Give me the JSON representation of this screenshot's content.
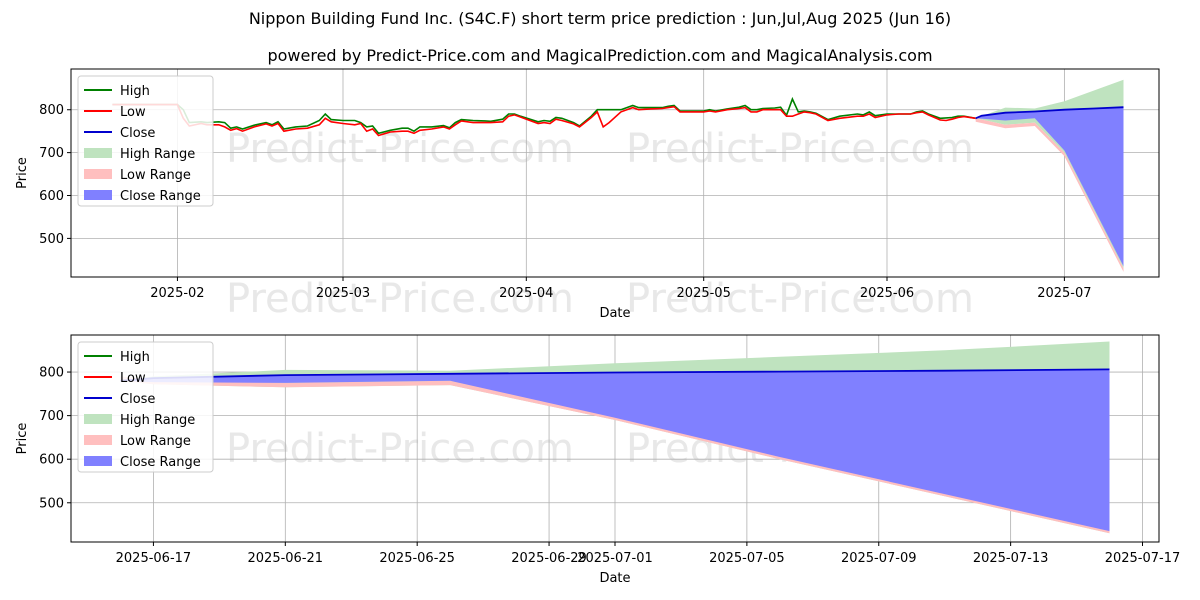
{
  "title": "Nippon Building Fund Inc. (S4C.F) short term price prediction : Jun,Jul,Aug 2025 (Jun 16)",
  "subtitle": "powered by Predict-Price.com and MagicalPrediction.com and MagicalAnalysis.com",
  "watermark": "Predict-Price.com",
  "colors": {
    "high": "#008000",
    "low": "#ff0000",
    "close": "#0000cd",
    "high_range": "#bfe3bf",
    "low_range": "#ffbfbf",
    "close_range": "#8080ff",
    "grid": "#b0b0b0"
  },
  "chart_data": [
    {
      "type": "line",
      "xlabel": "Date",
      "ylabel": "Price",
      "ylim": [
        410,
        895
      ],
      "yticks": [
        500,
        600,
        700,
        800
      ],
      "xticks": [
        "2025-02",
        "2025-03",
        "2025-04",
        "2025-05",
        "2025-06",
        "2025-07"
      ],
      "legend": [
        "High",
        "Low",
        "Close",
        "High Range",
        "Low Range",
        "Close Range"
      ],
      "legend_position": "upper-left",
      "history_high": [
        [
          -11,
          812
        ],
        [
          -6,
          812
        ],
        [
          -1,
          812
        ],
        [
          0,
          812
        ],
        [
          1,
          800
        ],
        [
          2,
          770
        ],
        [
          4,
          772
        ],
        [
          5,
          770
        ],
        [
          7,
          772
        ],
        [
          8,
          770
        ],
        [
          9,
          757
        ],
        [
          10,
          760
        ],
        [
          11,
          755
        ],
        [
          13,
          764
        ],
        [
          15,
          770
        ],
        [
          16,
          765
        ],
        [
          17,
          772
        ],
        [
          18,
          755
        ],
        [
          20,
          760
        ],
        [
          22,
          762
        ],
        [
          24,
          775
        ],
        [
          25,
          790
        ],
        [
          26,
          777
        ],
        [
          28,
          775
        ],
        [
          30,
          775
        ],
        [
          31,
          770
        ],
        [
          32,
          760
        ],
        [
          33,
          762
        ],
        [
          34,
          745
        ],
        [
          36,
          752
        ],
        [
          38,
          757
        ],
        [
          39,
          757
        ],
        [
          40,
          750
        ],
        [
          41,
          760
        ],
        [
          43,
          760
        ],
        [
          45,
          763
        ],
        [
          46,
          758
        ],
        [
          47,
          770
        ],
        [
          48,
          777
        ],
        [
          50,
          775
        ],
        [
          52,
          774
        ],
        [
          53,
          773
        ],
        [
          55,
          778
        ],
        [
          56,
          790
        ],
        [
          57,
          790
        ],
        [
          58,
          785
        ],
        [
          61,
          772
        ],
        [
          62,
          775
        ],
        [
          63,
          773
        ],
        [
          64,
          782
        ],
        [
          65,
          780
        ],
        [
          67,
          770
        ],
        [
          68,
          762
        ],
        [
          70,
          785
        ],
        [
          71,
          800
        ],
        [
          73,
          800
        ],
        [
          75,
          800
        ],
        [
          76,
          805
        ],
        [
          77,
          810
        ],
        [
          78,
          805
        ],
        [
          80,
          805
        ],
        [
          82,
          805
        ],
        [
          83,
          808
        ],
        [
          84,
          810
        ],
        [
          85,
          797
        ],
        [
          87,
          797
        ],
        [
          89,
          797
        ],
        [
          90,
          800
        ],
        [
          91,
          797
        ],
        [
          93,
          802
        ],
        [
          95,
          806
        ],
        [
          96,
          810
        ],
        [
          97,
          800
        ],
        [
          98,
          800
        ],
        [
          99,
          803
        ],
        [
          101,
          804
        ],
        [
          102,
          806
        ],
        [
          103,
          787
        ],
        [
          104,
          825
        ],
        [
          105,
          795
        ],
        [
          106,
          797
        ],
        [
          107,
          795
        ],
        [
          108,
          792
        ],
        [
          110,
          777
        ],
        [
          112,
          785
        ],
        [
          115,
          790
        ],
        [
          116,
          788
        ],
        [
          117,
          795
        ],
        [
          118,
          786
        ],
        [
          120,
          790
        ],
        [
          122,
          790
        ],
        [
          124,
          790
        ],
        [
          125,
          795
        ],
        [
          126,
          797
        ],
        [
          127,
          790
        ],
        [
          129,
          780
        ],
        [
          130,
          781
        ],
        [
          131,
          782
        ],
        [
          132,
          785
        ],
        [
          133,
          785
        ],
        [
          135,
          780
        ]
      ],
      "history_low": [
        [
          -11,
          812
        ],
        [
          -6,
          812
        ],
        [
          -1,
          812
        ],
        [
          0,
          812
        ],
        [
          1,
          780
        ],
        [
          2,
          762
        ],
        [
          4,
          768
        ],
        [
          5,
          765
        ],
        [
          7,
          765
        ],
        [
          8,
          760
        ],
        [
          9,
          752
        ],
        [
          10,
          756
        ],
        [
          11,
          750
        ],
        [
          13,
          760
        ],
        [
          15,
          767
        ],
        [
          16,
          762
        ],
        [
          17,
          768
        ],
        [
          18,
          750
        ],
        [
          20,
          755
        ],
        [
          22,
          757
        ],
        [
          24,
          765
        ],
        [
          25,
          780
        ],
        [
          26,
          772
        ],
        [
          28,
          768
        ],
        [
          30,
          765
        ],
        [
          31,
          768
        ],
        [
          32,
          750
        ],
        [
          33,
          755
        ],
        [
          34,
          740
        ],
        [
          36,
          748
        ],
        [
          38,
          750
        ],
        [
          39,
          750
        ],
        [
          40,
          745
        ],
        [
          41,
          752
        ],
        [
          43,
          755
        ],
        [
          45,
          760
        ],
        [
          46,
          755
        ],
        [
          47,
          765
        ],
        [
          48,
          774
        ],
        [
          50,
          770
        ],
        [
          52,
          770
        ],
        [
          53,
          770
        ],
        [
          55,
          772
        ],
        [
          56,
          785
        ],
        [
          57,
          788
        ],
        [
          58,
          783
        ],
        [
          61,
          768
        ],
        [
          62,
          770
        ],
        [
          63,
          768
        ],
        [
          64,
          778
        ],
        [
          65,
          775
        ],
        [
          67,
          767
        ],
        [
          68,
          760
        ],
        [
          70,
          782
        ],
        [
          71,
          795
        ],
        [
          72,
          760
        ],
        [
          73,
          770
        ],
        [
          75,
          795
        ],
        [
          76,
          800
        ],
        [
          77,
          805
        ],
        [
          78,
          800
        ],
        [
          80,
          802
        ],
        [
          82,
          803
        ],
        [
          83,
          805
        ],
        [
          84,
          807
        ],
        [
          85,
          795
        ],
        [
          87,
          795
        ],
        [
          89,
          795
        ],
        [
          90,
          797
        ],
        [
          91,
          795
        ],
        [
          93,
          800
        ],
        [
          95,
          803
        ],
        [
          96,
          805
        ],
        [
          97,
          795
        ],
        [
          98,
          795
        ],
        [
          99,
          800
        ],
        [
          101,
          800
        ],
        [
          102,
          800
        ],
        [
          103,
          785
        ],
        [
          104,
          785
        ],
        [
          105,
          790
        ],
        [
          106,
          795
        ],
        [
          107,
          793
        ],
        [
          108,
          790
        ],
        [
          110,
          775
        ],
        [
          112,
          780
        ],
        [
          115,
          785
        ],
        [
          116,
          785
        ],
        [
          117,
          790
        ],
        [
          118,
          782
        ],
        [
          120,
          788
        ],
        [
          122,
          790
        ],
        [
          124,
          790
        ],
        [
          125,
          793
        ],
        [
          126,
          795
        ],
        [
          127,
          788
        ],
        [
          129,
          776
        ],
        [
          130,
          775
        ],
        [
          131,
          778
        ],
        [
          132,
          782
        ],
        [
          133,
          784
        ],
        [
          135,
          780
        ]
      ],
      "forecast_close": [
        [
          135,
          780
        ],
        [
          136,
          786
        ],
        [
          140,
          793
        ],
        [
          145,
          796
        ],
        [
          150,
          800
        ],
        [
          155,
          803
        ],
        [
          160,
          806
        ]
      ],
      "forecast_high_range": [
        [
          135,
          780
        ],
        [
          140,
          805
        ],
        [
          145,
          803
        ],
        [
          150,
          820
        ],
        [
          160,
          870
        ]
      ],
      "forecast_low_range": [
        [
          135,
          780
        ],
        [
          140,
          765
        ],
        [
          145,
          770
        ],
        [
          150,
          700
        ],
        [
          160,
          430
        ]
      ],
      "forecast_close_range_low": [
        [
          135,
          780
        ],
        [
          140,
          775
        ],
        [
          145,
          780
        ],
        [
          150,
          705
        ],
        [
          160,
          435
        ]
      ]
    },
    {
      "type": "line",
      "xlabel": "Date",
      "ylabel": "Price",
      "ylim": [
        410,
        885
      ],
      "yticks": [
        500,
        600,
        700,
        800
      ],
      "xticks": [
        "2025-06-17",
        "2025-06-21",
        "2025-06-25",
        "2025-06-29",
        "2025-07-01",
        "2025-07-05",
        "2025-07-09",
        "2025-07-13",
        "2025-07-17"
      ],
      "legend": [
        "High",
        "Low",
        "Close",
        "High Range",
        "Low Range",
        "Close Range"
      ],
      "legend_position": "upper-left",
      "close": [
        [
          0,
          780
        ],
        [
          1,
          786
        ],
        [
          5,
          793
        ],
        [
          10,
          796
        ],
        [
          15,
          799
        ],
        [
          20,
          801
        ],
        [
          25,
          803
        ],
        [
          30,
          806
        ]
      ],
      "high_range": [
        [
          0,
          780
        ],
        [
          1,
          790
        ],
        [
          5,
          805
        ],
        [
          10,
          803
        ],
        [
          15,
          820
        ],
        [
          20,
          835
        ],
        [
          25,
          850
        ],
        [
          30,
          870
        ]
      ],
      "low_range": [
        [
          0,
          780
        ],
        [
          1,
          772
        ],
        [
          5,
          765
        ],
        [
          10,
          770
        ],
        [
          15,
          690
        ],
        [
          20,
          600
        ],
        [
          25,
          515
        ],
        [
          30,
          430
        ]
      ],
      "close_range_low": [
        [
          0,
          780
        ],
        [
          1,
          777
        ],
        [
          5,
          775
        ],
        [
          10,
          780
        ],
        [
          15,
          695
        ],
        [
          20,
          605
        ],
        [
          25,
          520
        ],
        [
          30,
          435
        ]
      ]
    }
  ]
}
